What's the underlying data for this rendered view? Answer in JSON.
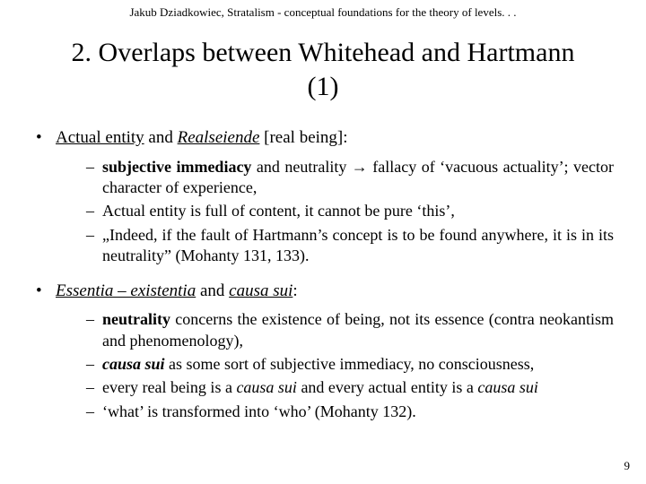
{
  "header": "Jakub Dziadkowiec, Stratalism - conceptual foundations for the theory of levels. . .",
  "title_l1": "2. Overlaps between Whitehead and Hartmann",
  "title_l2": "(1)",
  "b1_a": "Actual entity",
  "b1_b": " and ",
  "b1_c": "Realseiende",
  "b1_d": " [real being]:",
  "s1_1_a": "subjective immediacy",
  "s1_1_b": " and neutrality → fallacy of ‘vacuous actuality’; vector character of experience,",
  "s1_2": "Actual entity is full of content, it cannot be pure ‘this’,",
  "s1_3": "„Indeed, if the fault of Hartmann’s concept is to be found anywhere, it is in its neutrality” (Mohanty 131, 133).",
  "b2_a": "Essentia – existentia",
  "b2_b": " and ",
  "b2_c": "causa sui",
  "b2_d": ":",
  "s2_1_a": "neutrality",
  "s2_1_b": " concerns the existence of being, not its essence (contra neokantism and phenomenology),",
  "s2_2_a": "causa sui",
  "s2_2_b": " as some sort of subjective immediacy, no consciousness,",
  "s2_3_a": "every real being is a ",
  "s2_3_b": "causa sui",
  "s2_3_c": " and every actual entity is a ",
  "s2_3_d": "causa sui",
  "s2_4": "‘what’ is transformed into ‘who’ (Mohanty 132).",
  "pagenum": "9"
}
